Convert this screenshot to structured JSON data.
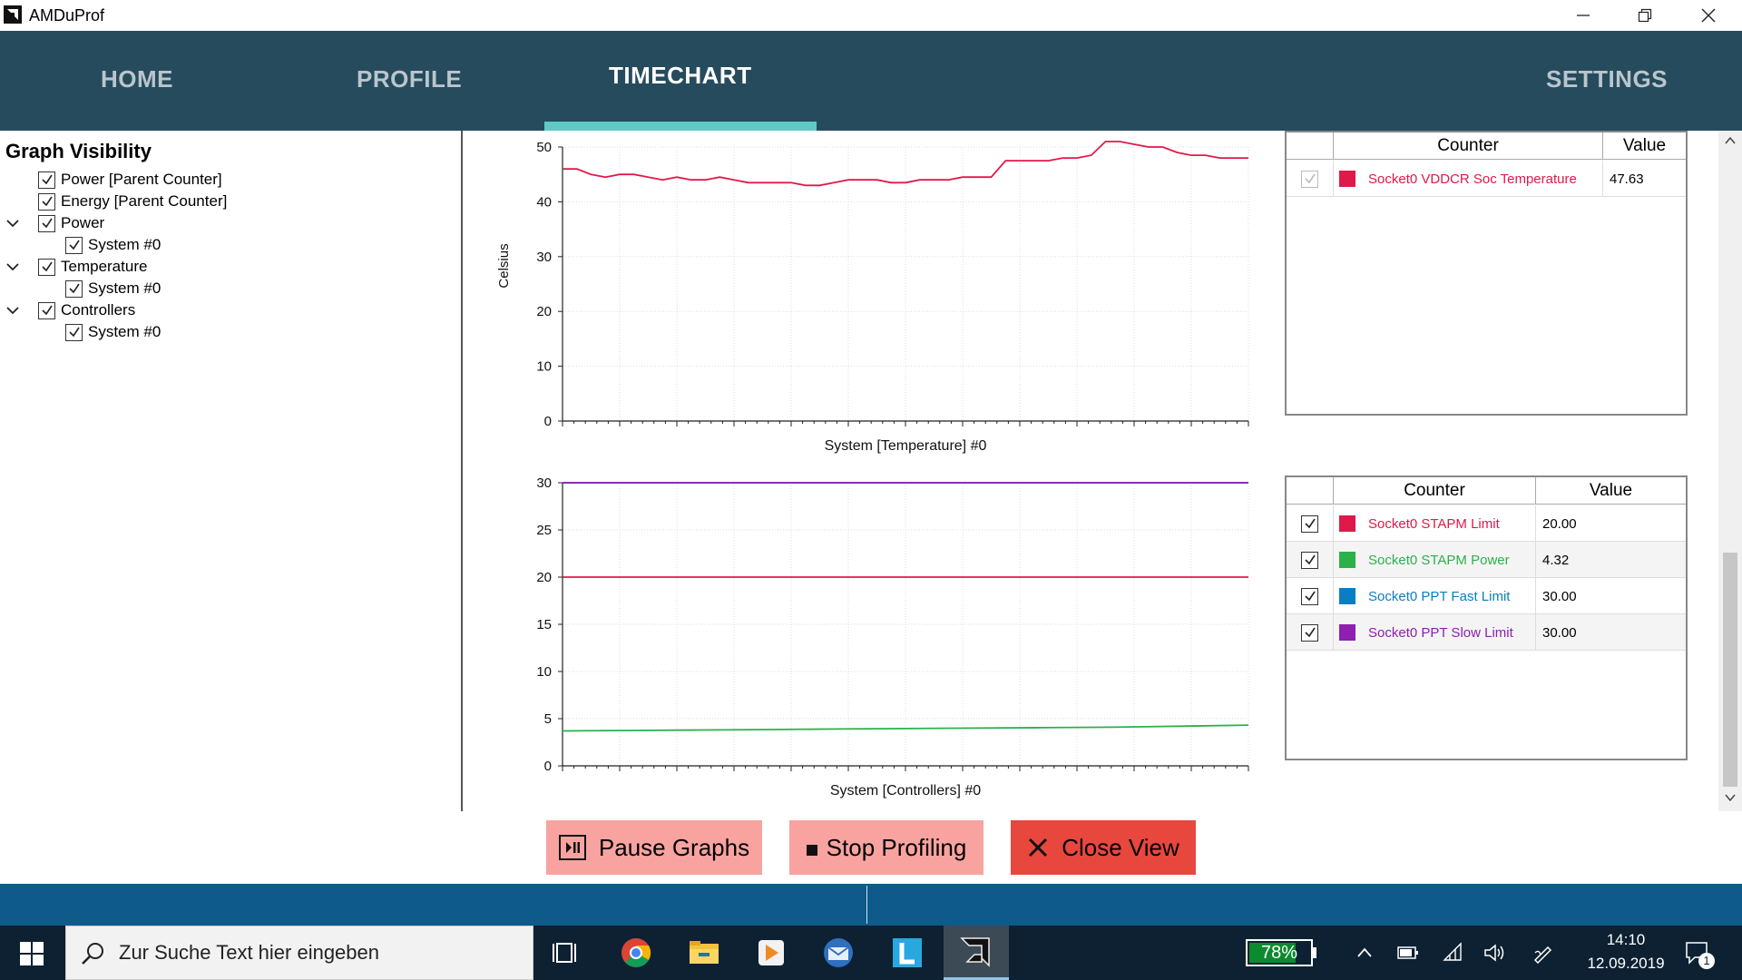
{
  "window": {
    "title": "AMDuProf"
  },
  "nav": {
    "tabs": [
      {
        "label": "HOME"
      },
      {
        "label": "PROFILE"
      },
      {
        "label": "TIMECHART",
        "active": true
      },
      {
        "label": "SETTINGS"
      }
    ]
  },
  "graph_visibility": {
    "title": "Graph Visibility",
    "items": [
      {
        "label": "Power [Parent Counter]",
        "checked": true
      },
      {
        "label": "Energy [Parent Counter]",
        "checked": true
      },
      {
        "label": "Power",
        "checked": true,
        "expanded": true
      },
      {
        "label": "System #0",
        "checked": true
      },
      {
        "label": "Temperature",
        "checked": true,
        "expanded": true
      },
      {
        "label": "System #0",
        "checked": true
      },
      {
        "label": "Controllers",
        "checked": true,
        "expanded": true
      },
      {
        "label": "System #0",
        "checked": true
      }
    ]
  },
  "chart_data": [
    {
      "type": "line",
      "ylabel": "Celsius",
      "xlabel": "System [Temperature] #0",
      "ylim": [
        0,
        50
      ],
      "yticks": [
        "0",
        "10",
        "20",
        "30",
        "40",
        "50"
      ],
      "series": [
        {
          "name": "Socket0 VDDCR Soc Temperature",
          "color": "#e0194b",
          "values": [
            46,
            46,
            45,
            44.5,
            45,
            45,
            44.5,
            44,
            44.5,
            44,
            44,
            44.5,
            44,
            43.5,
            43.5,
            43.5,
            43.5,
            43,
            43,
            43.5,
            44,
            44,
            44,
            43.5,
            43.5,
            44,
            44,
            44,
            44.5,
            44.5,
            44.5,
            47.5,
            47.5,
            47.5,
            47.5,
            48,
            48,
            48.5,
            51,
            51,
            50.5,
            50,
            50,
            49,
            48.5,
            48.5,
            48,
            48,
            48
          ]
        }
      ]
    },
    {
      "type": "line",
      "xlabel": "System [Controllers] #0",
      "ylim": [
        0,
        30
      ],
      "yticks": [
        "0",
        "5",
        "10",
        "15",
        "20",
        "25",
        "30"
      ],
      "series": [
        {
          "name": "Socket0 STAPM Limit",
          "color": "#e0194b",
          "values": [
            20,
            20,
            20,
            20,
            20,
            20,
            20,
            20,
            20,
            20,
            20
          ]
        },
        {
          "name": "Socket0 STAPM Power",
          "color": "#2bb14a",
          "values": [
            3.7,
            3.75,
            3.8,
            3.85,
            3.9,
            3.95,
            4.0,
            4.05,
            4.1,
            4.2,
            4.32
          ]
        },
        {
          "name": "Socket0 PPT Fast Limit",
          "color": "#0a7ec4",
          "values": [
            30,
            30,
            30,
            30,
            30,
            30,
            30,
            30,
            30,
            30,
            30
          ]
        },
        {
          "name": "Socket0 PPT Slow Limit",
          "color": "#8e1fb0",
          "values": [
            30,
            30,
            30,
            30,
            30,
            30,
            30,
            30,
            30,
            30,
            30
          ]
        }
      ]
    }
  ],
  "table_temperature": {
    "headers": {
      "counter": "Counter",
      "value": "Value"
    },
    "rows": [
      {
        "counter": "Socket0 VDDCR Soc Temperature",
        "value": "47.63",
        "color": "#e0194b",
        "checked": true,
        "disabled": true
      }
    ]
  },
  "table_controllers": {
    "headers": {
      "counter": "Counter",
      "value": "Value"
    },
    "rows": [
      {
        "counter": "Socket0 STAPM Limit",
        "value": "20.00",
        "color": "#e0194b",
        "checked": true
      },
      {
        "counter": "Socket0 STAPM Power",
        "value": "4.32",
        "color": "#2bb14a",
        "checked": true
      },
      {
        "counter": "Socket0 PPT Fast Limit",
        "value": "30.00",
        "color": "#0a7ec4",
        "checked": true
      },
      {
        "counter": "Socket0 PPT Slow Limit",
        "value": "30.00",
        "color": "#8e1fb0",
        "checked": true
      }
    ]
  },
  "buttons": {
    "pause": "Pause Graphs",
    "stop": "Stop Profiling",
    "close": "Close View"
  },
  "colors": {
    "nav_bg": "#264b5d",
    "nav_indicator": "#5fc9c6",
    "pause_bg": "#f9a3a0",
    "stop_bg": "#f9a3a0",
    "close_bg": "#e8473e",
    "status_bar": "#0e5a8a",
    "taskbar": "#0d2132"
  },
  "taskbar": {
    "search_placeholder": "Zur Suche Text hier eingeben",
    "battery": "78%",
    "battery_level": 0.78,
    "time": "14:10",
    "date": "12.09.2019",
    "notification_count": "1",
    "icons": [
      "task-view-icon",
      "chrome-icon",
      "file-explorer-icon",
      "media-player-icon",
      "thunderbird-icon",
      "l-app-icon",
      "amduprof-icon"
    ]
  }
}
